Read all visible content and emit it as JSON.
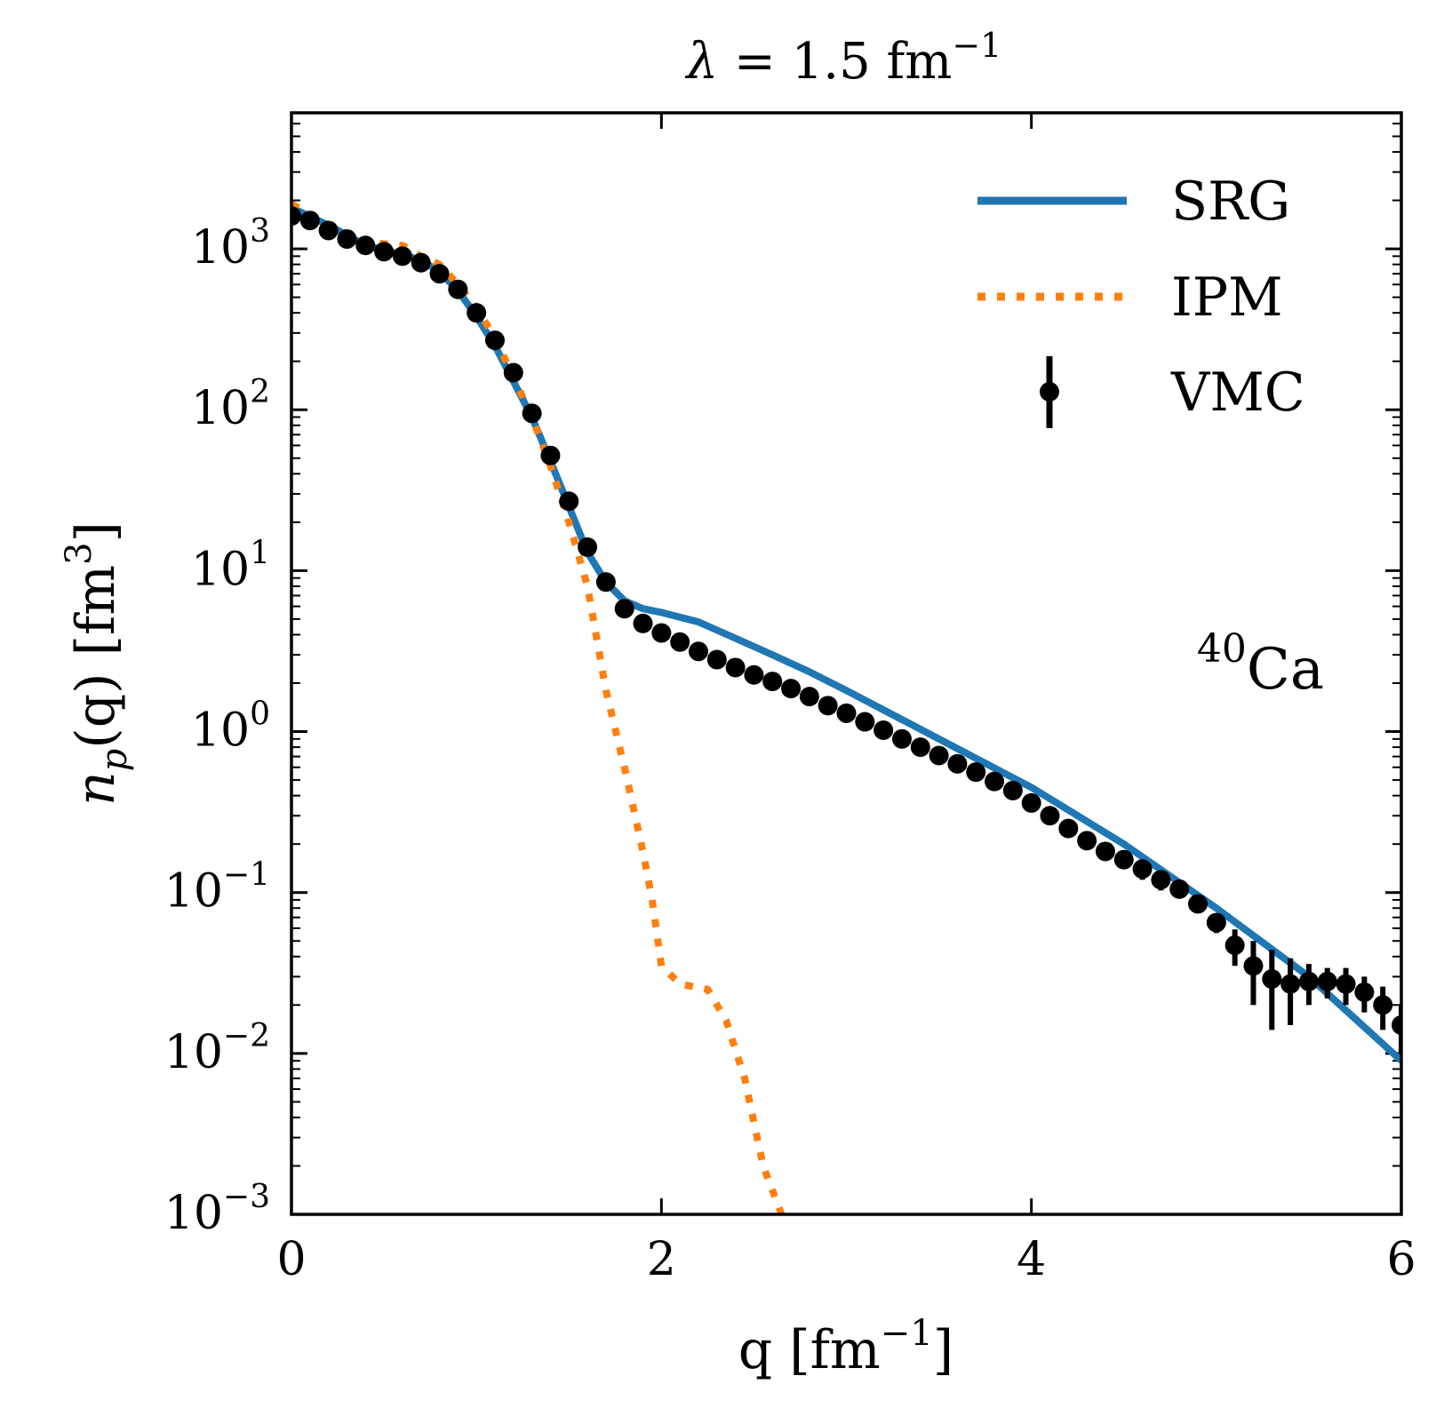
{
  "chart_data": {
    "type": "line",
    "title": "λ = 1.5 fm⁻¹",
    "title_parts": {
      "lhs": "λ",
      "eq": " = 1.5 fm",
      "sup": "−1"
    },
    "xlabel": {
      "main": "q [fm",
      "sup": "−1",
      "close": "]"
    },
    "ylabel": {
      "main": "n",
      "sub": "p",
      "mid": "(q) [fm",
      "sup": "3",
      "close": "]"
    },
    "annotation": {
      "sup": "40",
      "main": "Ca"
    },
    "xlim": [
      0,
      6
    ],
    "ylim": [
      0.001,
      7000
    ],
    "yscale": "log",
    "xticks": [
      0,
      2,
      4,
      6
    ],
    "xtick_labels": [
      "0",
      "2",
      "4",
      "6"
    ],
    "yticks": [
      0.001,
      0.01,
      0.1,
      1,
      10,
      100,
      1000
    ],
    "ytick_labels": [
      {
        "base": "10",
        "exp": "−3"
      },
      {
        "base": "10",
        "exp": "−2"
      },
      {
        "base": "10",
        "exp": "−1"
      },
      {
        "base": "10",
        "exp": "0"
      },
      {
        "base": "10",
        "exp": "1"
      },
      {
        "base": "10",
        "exp": "2"
      },
      {
        "base": "10",
        "exp": "3"
      }
    ],
    "grid": false,
    "legend_position": "top-right",
    "colors": {
      "SRG": "#1f77b4",
      "IPM": "#ff7f0e",
      "VMC": "#000000"
    },
    "series": [
      {
        "name": "SRG",
        "style": "solid",
        "x": [
          0,
          0.2,
          0.4,
          0.6,
          0.7,
          0.8,
          0.9,
          1.0,
          1.1,
          1.2,
          1.3,
          1.4,
          1.5,
          1.6,
          1.7,
          1.8,
          1.9,
          2.0,
          2.2,
          2.4,
          2.6,
          2.8,
          3.0,
          3.5,
          4.0,
          4.5,
          5.0,
          5.5,
          6.0
        ],
        "y": [
          1800,
          1400,
          1050,
          920,
          850,
          720,
          550,
          380,
          250,
          150,
          90,
          48,
          25,
          13,
          8.5,
          6.5,
          5.8,
          5.5,
          4.8,
          3.8,
          3.0,
          2.35,
          1.8,
          0.9,
          0.45,
          0.2,
          0.08,
          0.03,
          0.009
        ]
      },
      {
        "name": "IPM",
        "style": "dotted",
        "x": [
          0,
          0.2,
          0.4,
          0.6,
          0.7,
          0.8,
          0.9,
          1.0,
          1.1,
          1.2,
          1.3,
          1.4,
          1.5,
          1.6,
          1.7,
          1.8,
          1.9,
          1.95,
          2.0,
          2.1,
          2.25,
          2.35,
          2.45,
          2.55,
          2.65
        ],
        "y": [
          1900,
          1400,
          1100,
          1050,
          900,
          800,
          600,
          430,
          280,
          160,
          90,
          45,
          20,
          8,
          1.8,
          0.6,
          0.18,
          0.09,
          0.035,
          0.027,
          0.025,
          0.016,
          0.007,
          0.002,
          0.001
        ]
      },
      {
        "name": "VMC",
        "style": "markers",
        "x": [
          0,
          0.1,
          0.2,
          0.3,
          0.4,
          0.5,
          0.6,
          0.7,
          0.8,
          0.9,
          1.0,
          1.1,
          1.2,
          1.3,
          1.4,
          1.5,
          1.6,
          1.7,
          1.8,
          1.9,
          2.0,
          2.1,
          2.2,
          2.3,
          2.4,
          2.5,
          2.6,
          2.7,
          2.8,
          2.9,
          3.0,
          3.1,
          3.2,
          3.3,
          3.4,
          3.5,
          3.6,
          3.7,
          3.8,
          3.9,
          4.0,
          4.1,
          4.2,
          4.3,
          4.4,
          4.5,
          4.6,
          4.7,
          4.8,
          4.9,
          5.0,
          5.1,
          5.2,
          5.3,
          5.4,
          5.5,
          5.6,
          5.7,
          5.8,
          5.9,
          6.0
        ],
        "y": [
          1600,
          1500,
          1300,
          1150,
          1050,
          960,
          900,
          820,
          700,
          560,
          400,
          270,
          170,
          95,
          52,
          27,
          14,
          8.5,
          5.8,
          4.7,
          4.1,
          3.6,
          3.15,
          2.8,
          2.5,
          2.25,
          2.05,
          1.85,
          1.65,
          1.45,
          1.3,
          1.15,
          1.02,
          0.9,
          0.8,
          0.71,
          0.63,
          0.56,
          0.49,
          0.43,
          0.36,
          0.3,
          0.25,
          0.21,
          0.18,
          0.16,
          0.14,
          0.12,
          0.105,
          0.085,
          0.065,
          0.047,
          0.035,
          0.029,
          0.027,
          0.028,
          0.028,
          0.027,
          0.024,
          0.02,
          0.015
        ],
        "yerr": [
          0,
          0,
          0,
          0,
          0,
          0,
          0,
          0,
          0,
          0,
          0,
          0,
          0,
          0,
          0,
          0,
          0,
          0,
          0,
          0,
          0,
          0,
          0,
          0,
          0,
          0,
          0,
          0,
          0,
          0,
          0,
          0,
          0,
          0,
          0,
          0,
          0,
          0,
          0,
          0,
          0,
          0,
          0,
          0,
          0,
          0,
          0.02,
          0.017,
          0.012,
          0.01,
          0.009,
          0.012,
          0.015,
          0.015,
          0.012,
          0.008,
          0.006,
          0.007,
          0.006,
          0.006,
          0.005
        ]
      }
    ]
  }
}
